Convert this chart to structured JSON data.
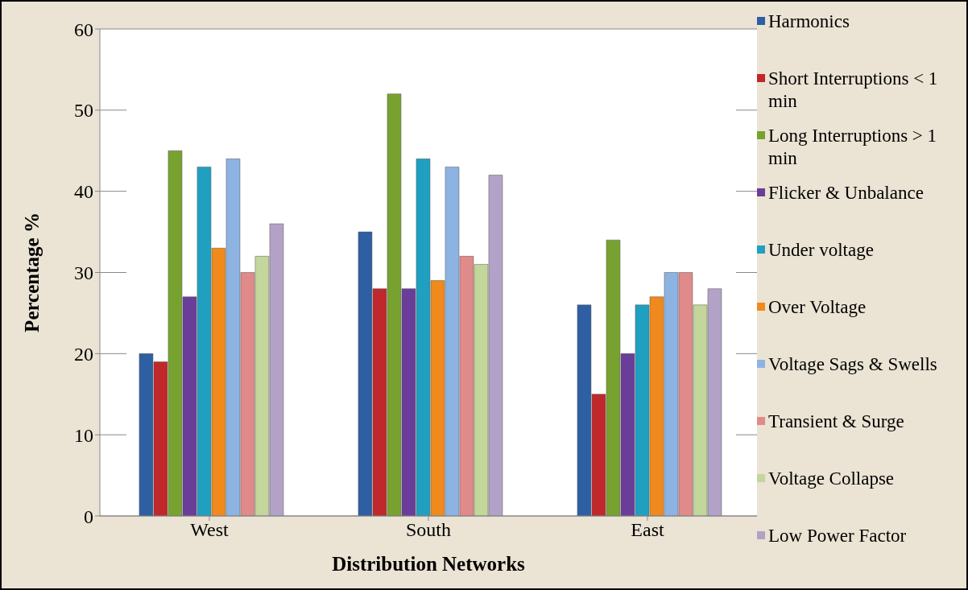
{
  "chart_data": {
    "type": "bar",
    "xlabel": "Distribution Networks",
    "ylabel": "Percentage  %",
    "categories": [
      "West",
      "South",
      "East"
    ],
    "series": [
      {
        "name": "Harmonics",
        "color": "#2e5fa3",
        "values": [
          20,
          35,
          26
        ]
      },
      {
        "name": "Short  Interruptions < 1 min",
        "color": "#c0282b",
        "values": [
          19,
          28,
          15
        ]
      },
      {
        "name": "Long Interruptions > 1 min",
        "color": "#78a22f",
        "values": [
          45,
          52,
          34
        ]
      },
      {
        "name": "Flicker & Unbalance",
        "color": "#6a3d9a",
        "values": [
          27,
          28,
          20
        ]
      },
      {
        "name": "Under voltage",
        "color": "#1fa0c0",
        "values": [
          43,
          44,
          26
        ]
      },
      {
        "name": "Over Voltage",
        "color": "#f08a1c",
        "values": [
          33,
          29,
          27
        ]
      },
      {
        "name": "Voltage Sags & Swells",
        "color": "#8db3e2",
        "values": [
          44,
          43,
          30
        ]
      },
      {
        "name": "Transient & Surge",
        "color": "#e08a8a",
        "values": [
          30,
          32,
          30
        ]
      },
      {
        "name": "Voltage Collapse",
        "color": "#c3d69b",
        "values": [
          32,
          31,
          26
        ]
      },
      {
        "name": "Low Power Factor",
        "color": "#b3a2c7",
        "values": [
          36,
          42,
          28
        ]
      }
    ],
    "ylim": [
      0,
      60
    ],
    "yticks": [
      0,
      10,
      20,
      30,
      40,
      50,
      60
    ],
    "grid": "y",
    "legend": "right"
  }
}
